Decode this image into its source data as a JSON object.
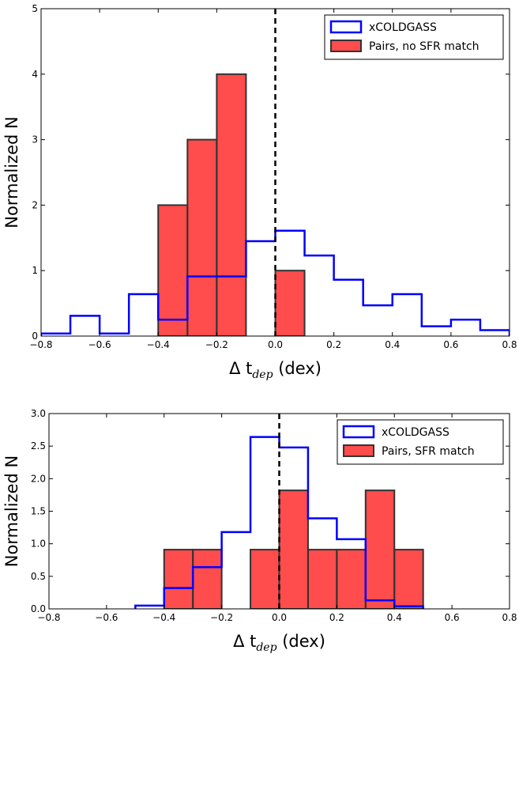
{
  "chart_data": [
    {
      "type": "histogram",
      "xlabel": "Δ t_dep (dex)",
      "xlabel_parts": {
        "prefix": "Δ t",
        "subscript": "dep",
        "suffix": " (dex)"
      },
      "ylabel": "Normalized N",
      "xlim": [
        -0.8,
        0.8
      ],
      "ylim": [
        0,
        5
      ],
      "xticks": [
        -0.8,
        -0.6,
        -0.4,
        -0.2,
        0.0,
        0.2,
        0.4,
        0.6,
        0.8
      ],
      "xtick_labels": [
        "−0.8",
        "−0.6",
        "−0.4",
        "−0.2",
        "0.0",
        "0.2",
        "0.4",
        "0.6",
        "0.8"
      ],
      "yticks": [
        0,
        1,
        2,
        3,
        4,
        5
      ],
      "ytick_labels": [
        "0",
        "1",
        "2",
        "3",
        "4",
        "5"
      ],
      "vline": {
        "x": 0.0,
        "style": "dashed",
        "color": "#000000"
      },
      "legend_position": "top-right",
      "series": [
        {
          "name": "xCOLDGASS",
          "style": "step",
          "color": "#0000ff",
          "bin_edges": [
            -0.8,
            -0.7,
            -0.6,
            -0.5,
            -0.4,
            -0.3,
            -0.2,
            -0.1,
            0.0,
            0.1,
            0.2,
            0.3,
            0.4,
            0.5,
            0.6,
            0.7,
            0.8
          ],
          "values": [
            0.04,
            0.31,
            0.04,
            0.64,
            0.25,
            0.91,
            0.91,
            1.45,
            1.61,
            1.23,
            0.86,
            0.47,
            0.64,
            0.15,
            0.25,
            0.09
          ]
        },
        {
          "name": "Pairs, no SFR match",
          "style": "filled",
          "color": "#ff0000",
          "edge_color": "#333333",
          "bin_edges": [
            -0.4,
            -0.3,
            -0.2,
            -0.1,
            0.0,
            0.1
          ],
          "values": [
            2,
            3,
            4,
            0,
            1
          ]
        }
      ]
    },
    {
      "type": "histogram",
      "xlabel": "Δ t_dep (dex)",
      "xlabel_parts": {
        "prefix": "Δ t",
        "subscript": "dep",
        "suffix": " (dex)"
      },
      "ylabel": "Normalized N",
      "xlim": [
        -0.8,
        0.8
      ],
      "ylim": [
        0,
        3
      ],
      "xticks": [
        -0.8,
        -0.6,
        -0.4,
        -0.2,
        0.0,
        0.2,
        0.4,
        0.6,
        0.8
      ],
      "xtick_labels": [
        "−0.8",
        "−0.6",
        "−0.4",
        "−0.2",
        "0.0",
        "0.2",
        "0.4",
        "0.6",
        "0.8"
      ],
      "yticks": [
        0,
        0.5,
        1.0,
        1.5,
        2.0,
        2.5,
        3.0
      ],
      "ytick_labels": [
        "0.0",
        "0.5",
        "1.0",
        "1.5",
        "2.0",
        "2.5",
        "3.0"
      ],
      "vline": {
        "x": 0.0,
        "style": "dashed",
        "color": "#000000"
      },
      "legend_position": "top-right",
      "series": [
        {
          "name": "xCOLDGASS",
          "style": "step",
          "color": "#0000ff",
          "bin_edges": [
            -0.5,
            -0.4,
            -0.3,
            -0.2,
            -0.1,
            0.0,
            0.1,
            0.2,
            0.3,
            0.4,
            0.5
          ],
          "values": [
            0.05,
            0.32,
            0.64,
            1.18,
            2.64,
            2.48,
            1.39,
            1.07,
            0.13,
            0.04
          ]
        },
        {
          "name": "Pairs, SFR match",
          "style": "filled",
          "color": "#ff0000",
          "edge_color": "#333333",
          "bin_edges": [
            -0.4,
            -0.3,
            -0.2,
            -0.1,
            0.0,
            0.1,
            0.2,
            0.3,
            0.4,
            0.5
          ],
          "values": [
            0.91,
            0.91,
            0,
            0.91,
            1.82,
            0.91,
            0.91,
            1.82,
            0.91
          ]
        }
      ]
    }
  ]
}
